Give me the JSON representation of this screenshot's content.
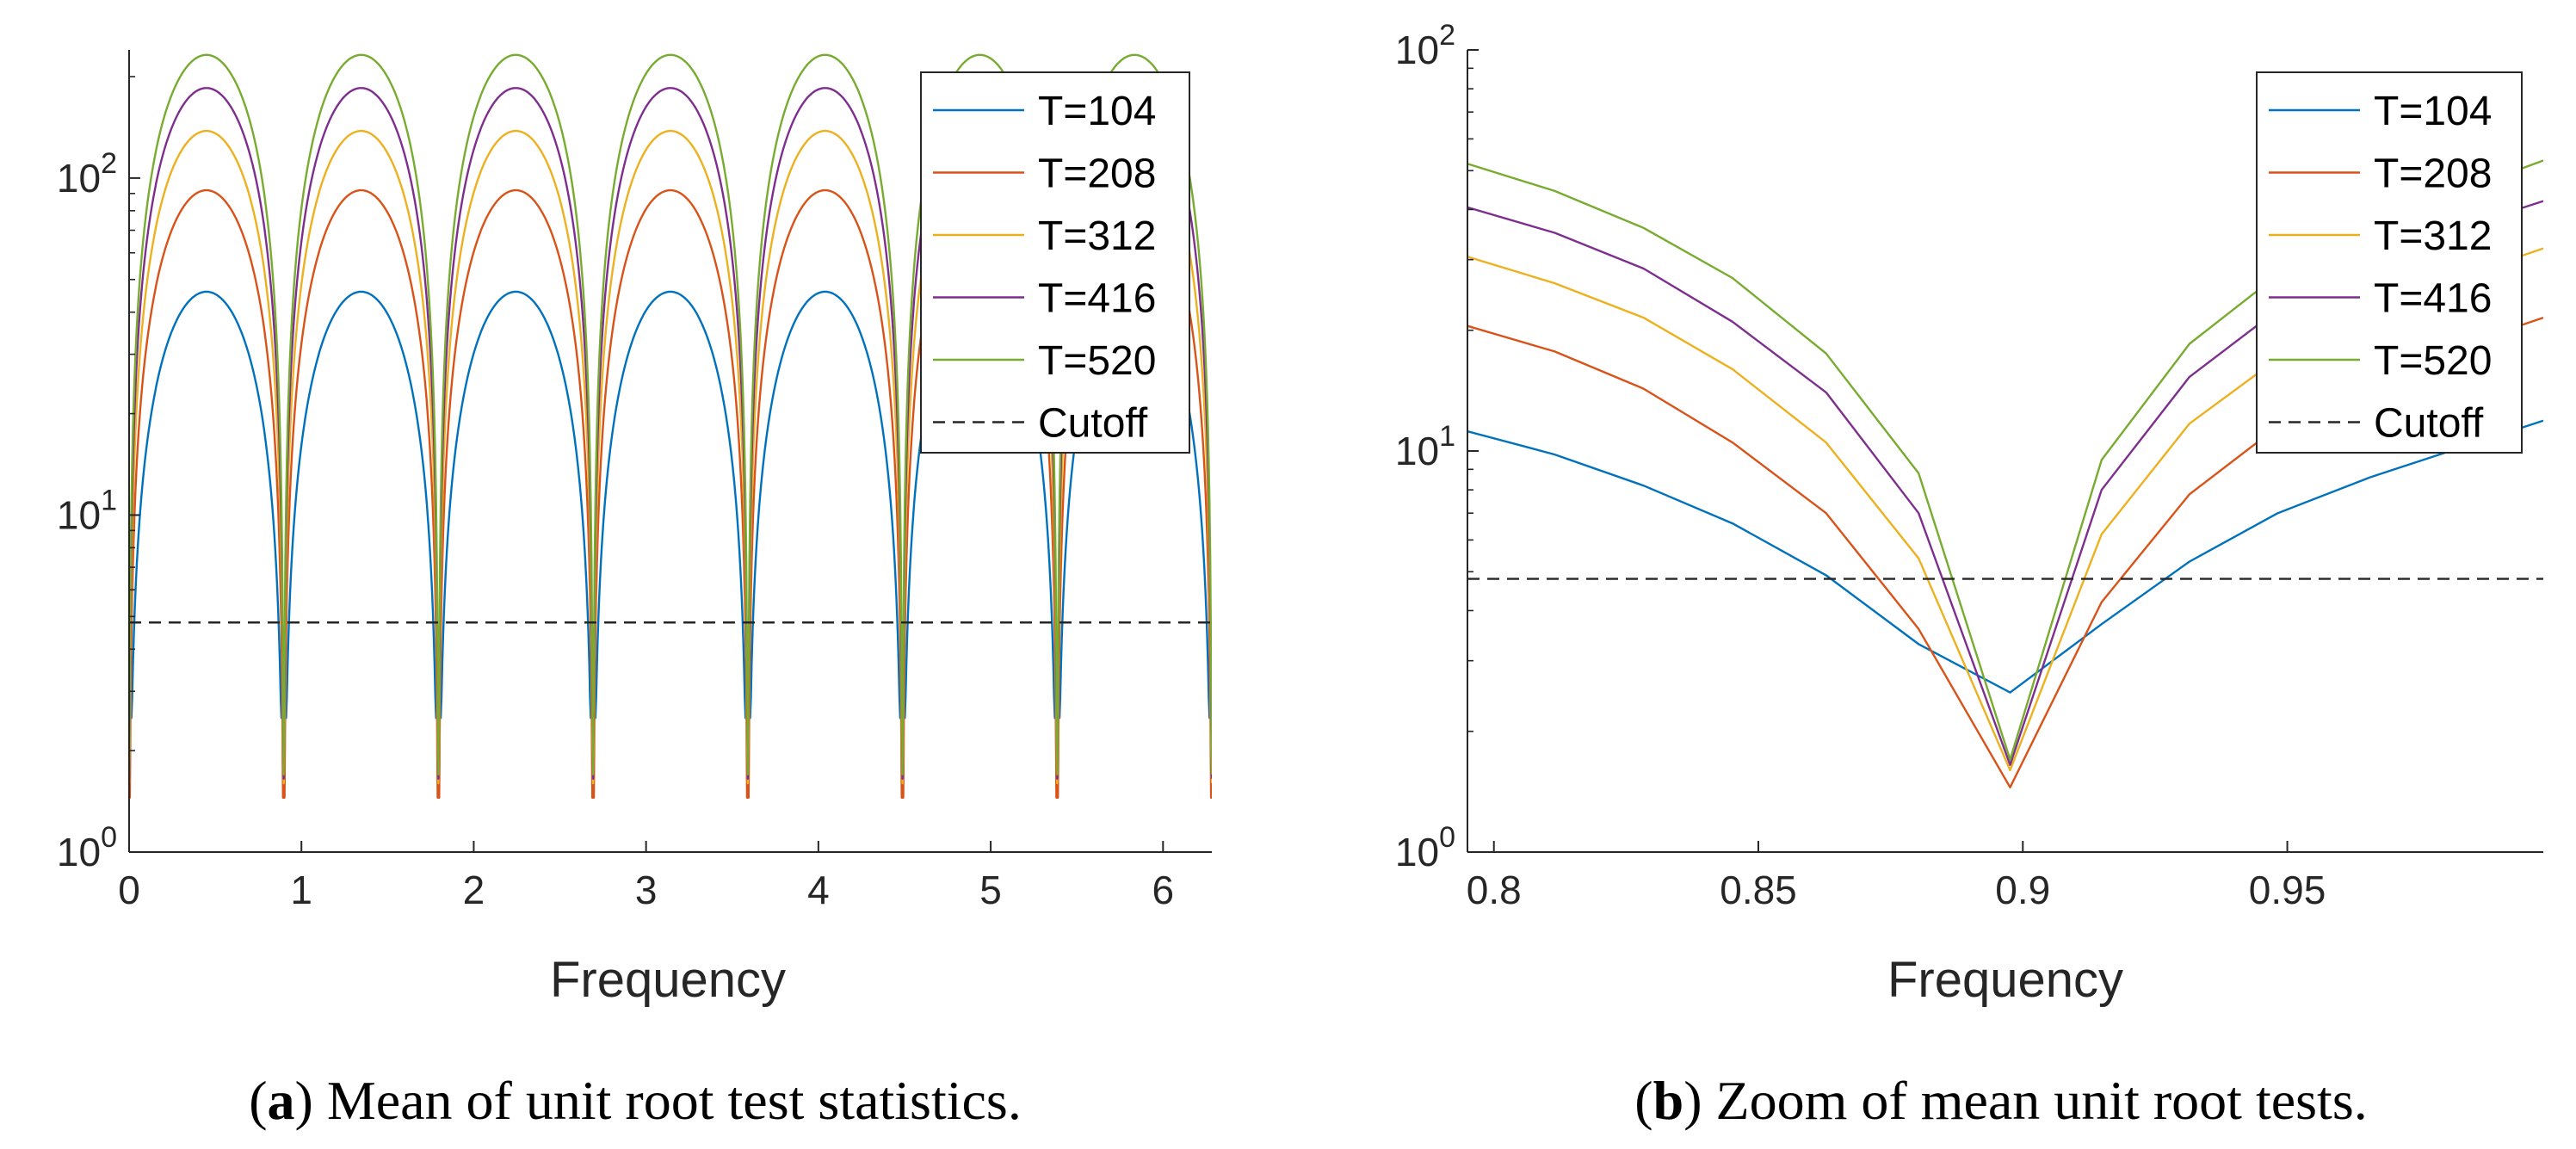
{
  "chart_data": [
    {
      "type": "line",
      "id": "a",
      "caption_label": "a",
      "caption_text": " Mean of unit root test statistics.",
      "xlabel": "Frequency",
      "ylabel": "",
      "yscale": "log",
      "xlim": [
        0,
        6.2832
      ],
      "ylim": [
        1,
        240
      ],
      "xticks": [
        0,
        1,
        2,
        3,
        4,
        5,
        6
      ],
      "xtick_labels": [
        "0",
        "1",
        "2",
        "3",
        "4",
        "5",
        "6"
      ],
      "yticks": [
        1,
        10,
        100
      ],
      "ytick_labels": [
        {
          "base": "10",
          "exp": "0"
        },
        {
          "base": "10",
          "exp": "1"
        },
        {
          "base": "10",
          "exp": "2"
        }
      ],
      "grid": false,
      "legend_position": "top-right",
      "dip_frequencies": [
        0.8976,
        1.7952,
        2.6928,
        3.5904,
        4.488,
        5.3856
      ],
      "series": [
        {
          "name": "T=104",
          "color": "#0072BD",
          "peak": 46,
          "dip": 2.5
        },
        {
          "name": "T=208",
          "color": "#D95319",
          "peak": 92,
          "dip": 1.45
        },
        {
          "name": "T=312",
          "color": "#EDB120",
          "peak": 138,
          "dip": 1.6
        },
        {
          "name": "T=416",
          "color": "#7E2F8E",
          "peak": 185,
          "dip": 1.65
        },
        {
          "name": "T=520",
          "color": "#77AC30",
          "peak": 232,
          "dip": 1.7
        }
      ],
      "cutoff": {
        "name": "Cutoff",
        "value": 4.8,
        "color": "#262626"
      }
    },
    {
      "type": "line",
      "id": "b",
      "caption_label": "b",
      "caption_text": " Zoom of mean unit root tests.",
      "xlabel": "Frequency",
      "ylabel": "",
      "yscale": "log",
      "xlim": [
        0.795,
        0.9984
      ],
      "ylim": [
        1,
        100
      ],
      "xticks": [
        0.8,
        0.85,
        0.9,
        0.95
      ],
      "xtick_labels": [
        "0.8",
        "0.85",
        "0.9",
        "0.95"
      ],
      "yticks": [
        1,
        10,
        100
      ],
      "ytick_labels": [
        {
          "base": "10",
          "exp": "0"
        },
        {
          "base": "10",
          "exp": "1"
        },
        {
          "base": "10",
          "exp": "2"
        }
      ],
      "grid": false,
      "legend_position": "top-right",
      "x": [
        0.795,
        0.8115,
        0.8283,
        0.8451,
        0.8628,
        0.8803,
        0.8976,
        0.9149,
        0.9315,
        0.9482,
        0.9657,
        0.9828,
        0.9984
      ],
      "series": [
        {
          "name": "T=104",
          "color": "#0072BD",
          "values": [
            11.2,
            9.8,
            8.2,
            6.6,
            4.9,
            3.3,
            2.5,
            3.7,
            5.3,
            7.0,
            8.6,
            10.2,
            11.9
          ]
        },
        {
          "name": "T=208",
          "color": "#D95319",
          "values": [
            20.5,
            17.7,
            14.3,
            10.5,
            7.0,
            3.6,
            1.45,
            4.2,
            7.8,
            11.5,
            15.0,
            18.3,
            21.5
          ]
        },
        {
          "name": "T=312",
          "color": "#EDB120",
          "values": [
            30.5,
            26.2,
            21.5,
            16.0,
            10.5,
            5.4,
            1.6,
            6.2,
            11.7,
            17.0,
            22.4,
            27.2,
            32.0
          ]
        },
        {
          "name": "T=416",
          "color": "#7E2F8E",
          "values": [
            40.5,
            35.0,
            28.5,
            21.0,
            14.0,
            7.0,
            1.65,
            8.0,
            15.3,
            22.5,
            29.8,
            36.0,
            42.0
          ]
        },
        {
          "name": "T=520",
          "color": "#77AC30",
          "values": [
            52.0,
            44.5,
            36.0,
            27.0,
            17.5,
            8.8,
            1.7,
            9.5,
            18.5,
            27.5,
            36.5,
            44.5,
            53.0
          ]
        }
      ],
      "cutoff": {
        "name": "Cutoff",
        "value": 4.8,
        "color": "#262626"
      }
    }
  ]
}
